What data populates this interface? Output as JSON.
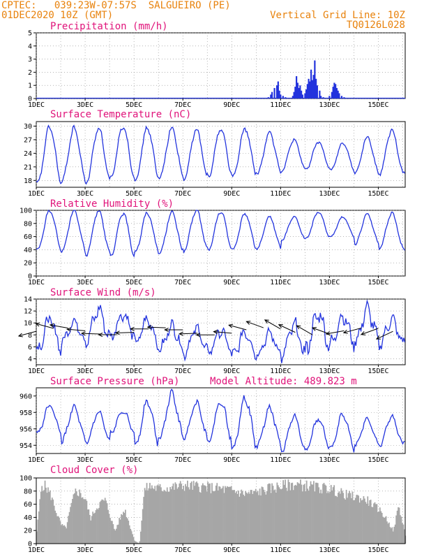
{
  "header": {
    "line1_left": "CPTEC:   039:23W-07:57S  SALGUEIRO (PE)",
    "line2_left": "01DEC2020 10Z (GMT)",
    "line1_right": "Vertical Grid Line: 10Z",
    "line2_right": "TQ0126L028"
  },
  "colors": {
    "header": "#e8820c",
    "title": "#e0137a",
    "line": "#2233dd",
    "bar": "#2233dd",
    "wind_arrow": "#000000",
    "cloud": "#a6a6a6"
  },
  "x_axis": {
    "tick_labels": [
      "1DEC",
      "3DEC",
      "5DEC",
      "7DEC",
      "9DEC",
      "11DEC",
      "13DEC",
      "15DEC"
    ],
    "tick_days": [
      0,
      2,
      4,
      6,
      8,
      10,
      12,
      14
    ],
    "range_days": [
      0,
      15.1
    ],
    "vertical_grid_line_days": [
      0,
      1,
      2,
      3,
      4,
      5,
      6,
      7,
      8,
      9,
      10,
      11,
      12,
      13,
      14,
      15
    ]
  },
  "chart_data": [
    {
      "id": "precip",
      "type": "bar",
      "title": "Precipitation (mm/h)",
      "ylim": [
        0,
        5
      ],
      "yticks": [
        0,
        1,
        2,
        3,
        4,
        5
      ],
      "x_days": [
        9.5,
        9.6,
        9.65,
        9.75,
        9.85,
        9.9,
        9.95,
        10.0,
        10.1,
        10.2,
        10.5,
        10.55,
        10.6,
        10.65,
        10.7,
        10.75,
        10.8,
        10.85,
        10.9,
        11.0,
        11.05,
        11.1,
        11.15,
        11.2,
        11.25,
        11.3,
        11.35,
        11.4,
        11.45,
        11.5,
        11.6,
        11.65,
        11.75,
        11.8,
        12.0,
        12.1,
        12.15,
        12.2,
        12.25,
        12.3,
        12.35,
        12.4,
        12.5,
        12.6
      ],
      "values": [
        0.1,
        0.3,
        0.5,
        0.8,
        1.0,
        1.3,
        0.6,
        0.3,
        0.2,
        0.1,
        0.2,
        0.5,
        0.9,
        1.7,
        1.2,
        0.8,
        1.0,
        0.6,
        0.3,
        0.4,
        0.7,
        1.1,
        1.5,
        1.3,
        2.2,
        1.4,
        1.8,
        2.9,
        1.5,
        1.0,
        0.6,
        0.2,
        0.1,
        0.05,
        0.2,
        0.5,
        0.9,
        1.2,
        1.1,
        0.8,
        0.6,
        0.4,
        0.2,
        0.1
      ]
    },
    {
      "id": "temp",
      "type": "line",
      "title": "Surface Temperature (nC)",
      "ylim": [
        16.5,
        31
      ],
      "yticks": [
        18,
        21,
        24,
        27,
        30
      ],
      "daily_min": [
        17.2,
        17.8,
        17.6,
        18.5,
        18.0,
        18.6,
        18.3,
        19.0,
        18.8,
        19.5,
        20.2,
        20.5,
        20.2,
        19.5,
        19.5,
        19.8
      ],
      "daily_max": [
        29.8,
        29.5,
        29.6,
        30.0,
        29.6,
        29.5,
        29.2,
        29.4,
        29.4,
        28.5,
        27.0,
        26.5,
        26.3,
        27.5,
        29.0,
        29.2
      ],
      "series": [
        {
          "values": []
        }
      ]
    },
    {
      "id": "rh",
      "type": "line",
      "title": "Relative Humidity (%)",
      "ylim": [
        0,
        100
      ],
      "yticks": [
        0,
        20,
        40,
        60,
        80,
        100
      ],
      "daily_min": [
        40,
        38,
        33,
        30,
        37,
        35,
        39,
        40,
        40,
        42,
        55,
        58,
        60,
        48,
        42,
        40
      ],
      "daily_max": [
        100,
        100,
        100,
        96,
        96,
        97,
        100,
        98,
        95,
        90,
        90,
        98,
        90,
        95,
        96,
        94
      ],
      "series": [
        {
          "values": []
        }
      ]
    },
    {
      "id": "wind",
      "type": "line",
      "title": "Surface Wind (m/s)",
      "ylim": [
        3,
        14
      ],
      "yticks": [
        4,
        6,
        8,
        10,
        12,
        14
      ],
      "daily_min": [
        5.5,
        7.0,
        7.2,
        7.8,
        6.5,
        5.5,
        5.0,
        5.2,
        4.5,
        4.8,
        4.5,
        6.0,
        6.5,
        6.8,
        6.5,
        7.0
      ],
      "daily_max": [
        10.5,
        10.2,
        12.2,
        11.5,
        10.5,
        9.5,
        9.0,
        8.6,
        8.5,
        8.2,
        9.5,
        11.5,
        11.2,
        12.2,
        10.5,
        9.5
      ],
      "arrow_days": [
        0.0,
        0.7,
        1.3,
        2.0,
        2.6,
        3.3,
        4.0,
        4.6,
        5.3,
        6.0,
        6.6,
        7.3,
        8.0,
        8.6,
        9.3,
        10.0,
        10.6,
        11.3,
        12.0,
        12.6,
        13.3,
        14.0,
        14.6
      ],
      "arrow_angles_deg": [
        195,
        165,
        170,
        175,
        178,
        180,
        182,
        180,
        178,
        180,
        182,
        180,
        175,
        165,
        160,
        150,
        155,
        150,
        160,
        190,
        195,
        200,
        205
      ],
      "series": [
        {
          "values": []
        }
      ]
    },
    {
      "id": "pressure",
      "type": "line",
      "title": "Surface Pressure (hPa)",
      "subtitle": "Model Altitude: 489.823 m",
      "ylim": [
        953,
        961
      ],
      "yticks": [
        954,
        956,
        958,
        960
      ],
      "daily_min": [
        955.5,
        954.5,
        954.3,
        955.5,
        954.0,
        955.0,
        955.0,
        954.5,
        953.7,
        954.0,
        953.3,
        953.6,
        953.5,
        954.0,
        954.0,
        954.5
      ],
      "daily_max": [
        958.8,
        958.6,
        958.0,
        958.2,
        959.3,
        960.2,
        959.2,
        959.3,
        959.8,
        958.5,
        957.5,
        957.2,
        957.8,
        957.2,
        957.5,
        957.0
      ],
      "series": [
        {
          "values": []
        }
      ]
    },
    {
      "id": "cloud",
      "type": "area",
      "title": "Cloud Cover (%)",
      "ylim": [
        0,
        100
      ],
      "yticks": [
        0,
        20,
        40,
        60,
        80,
        100
      ],
      "x_days": [
        0.0,
        0.2,
        0.4,
        0.6,
        0.8,
        1.0,
        1.2,
        1.4,
        1.6,
        1.8,
        2.0,
        2.2,
        2.4,
        2.6,
        2.8,
        3.0,
        3.2,
        3.4,
        3.6,
        3.8,
        4.0,
        4.2,
        4.4,
        4.6,
        4.8,
        5.0,
        5.5,
        6.0,
        6.5,
        7.0,
        7.5,
        8.0,
        8.5,
        9.0,
        9.5,
        10.0,
        10.5,
        11.0,
        11.5,
        12.0,
        12.5,
        13.0,
        13.5,
        14.0,
        14.3,
        14.6,
        14.8,
        15.0,
        15.1
      ],
      "values": [
        20,
        95,
        90,
        75,
        50,
        30,
        25,
        60,
        85,
        80,
        70,
        40,
        55,
        65,
        70,
        45,
        20,
        40,
        55,
        30,
        5,
        0,
        85,
        92,
        90,
        88,
        90,
        93,
        92,
        90,
        88,
        85,
        80,
        82,
        88,
        92,
        95,
        93,
        90,
        88,
        80,
        75,
        70,
        55,
        40,
        20,
        60,
        30,
        10
      ]
    }
  ]
}
